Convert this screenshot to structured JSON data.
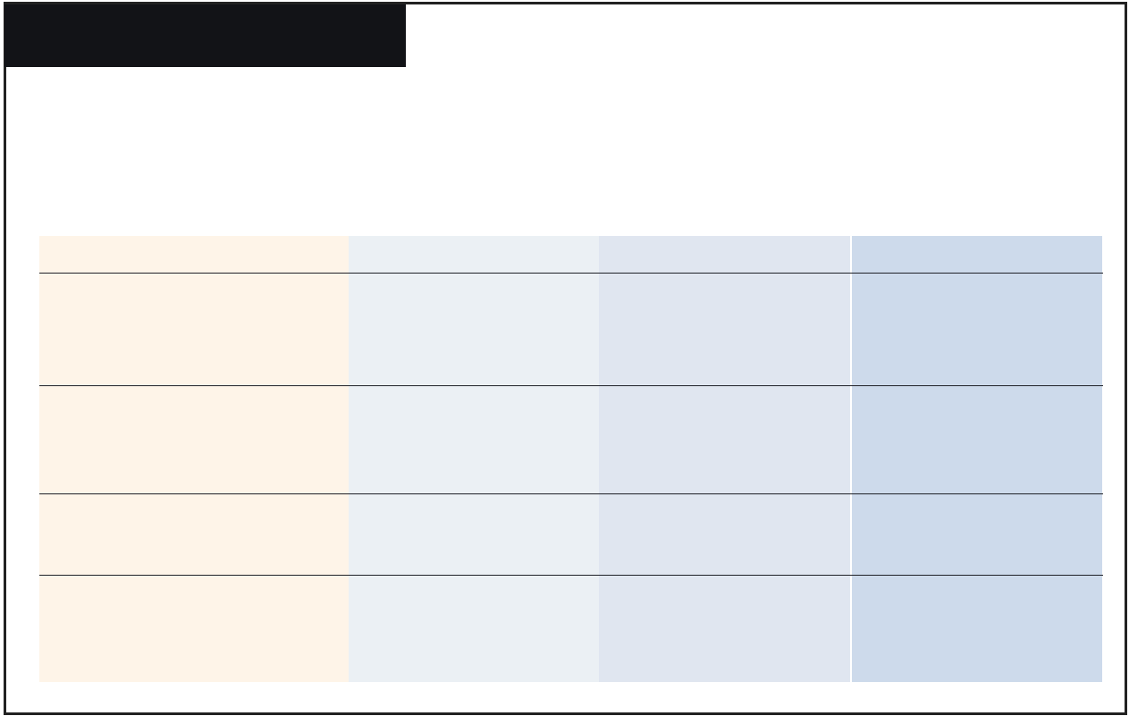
{
  "colors": {
    "title_bar": "#121317",
    "frame_border": "#222222",
    "column_1": "#fef4e8",
    "column_2": "#ebf0f4",
    "column_3": "#e0e6f0",
    "column_4": "#cddaeb",
    "row_rule": "#1f2128"
  },
  "table": {
    "columns": 4,
    "rows": 5,
    "header": [
      "",
      "",
      "",
      ""
    ],
    "cells": [
      [
        "",
        "",
        "",
        ""
      ],
      [
        "",
        "",
        "",
        ""
      ],
      [
        "",
        "",
        "",
        ""
      ],
      [
        "",
        "",
        "",
        ""
      ]
    ]
  }
}
